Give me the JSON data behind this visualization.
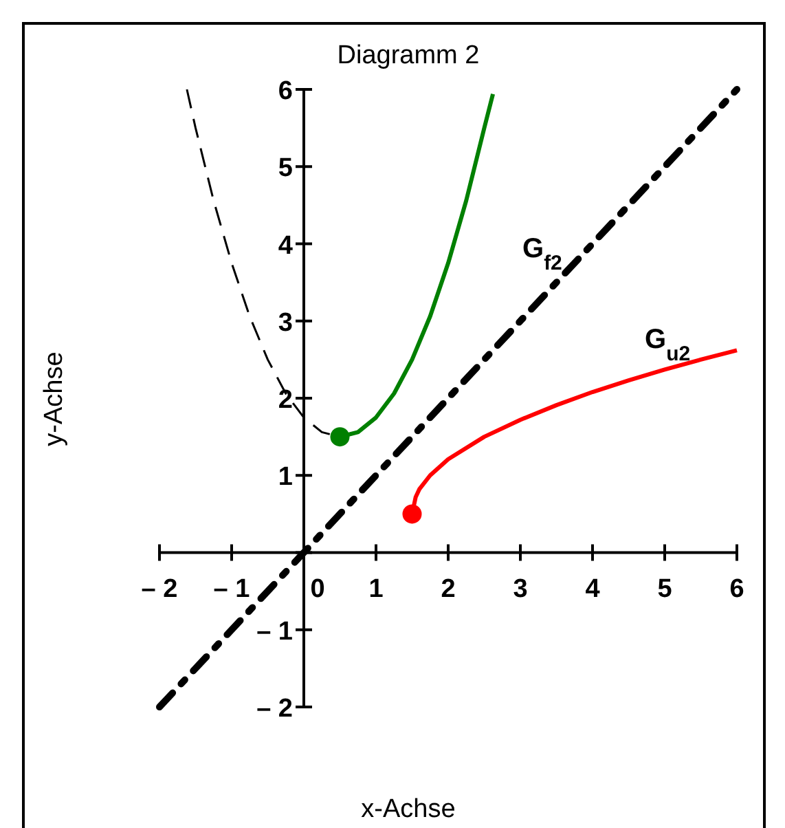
{
  "chart_data": {
    "type": "line",
    "title": "Diagramm 2",
    "xlabel": "x-Achse",
    "ylabel": "y-Achse",
    "xlim": [
      -2,
      6
    ],
    "ylim": [
      -2,
      6
    ],
    "xticks": [
      {
        "value": -2,
        "label": "– 2"
      },
      {
        "value": -1,
        "label": "– 1"
      },
      0,
      1,
      2,
      3,
      4,
      5,
      6
    ],
    "yticks": [
      {
        "value": -2,
        "label": "– 2"
      },
      {
        "value": -1,
        "label": "– 1"
      },
      {
        "value": 0,
        "label": null
      },
      1,
      2,
      3,
      4,
      5,
      6
    ],
    "grid": false,
    "series": [
      {
        "type": "line",
        "color": "#000000",
        "line_style": "dashdot",
        "marker": "none",
        "x": [
          -2,
          6
        ],
        "values": [
          -2,
          6
        ]
      },
      {
        "type": "line",
        "color": "#000000",
        "line_style": "dashed",
        "marker": "none",
        "x": [
          -1.62,
          -1.5,
          -1.25,
          -1,
          -0.75,
          -0.5,
          -0.25,
          0,
          0.25,
          0.5
        ],
        "values": [
          6,
          5.5,
          4.56,
          3.75,
          3.06,
          2.5,
          2.06,
          1.75,
          1.56,
          1.5
        ]
      },
      {
        "type": "line",
        "color": "#008000",
        "line_style": "solid",
        "marker": "none",
        "x": [
          0.5,
          0.75,
          1,
          1.25,
          1.5,
          1.75,
          2,
          2.25,
          2.5,
          2.62
        ],
        "values": [
          1.5,
          1.56,
          1.75,
          2.06,
          2.5,
          3.06,
          3.75,
          4.56,
          5.5,
          5.94
        ]
      },
      {
        "type": "line",
        "color": "#ff0000",
        "line_style": "solid",
        "marker": "none",
        "x": [
          1.5,
          1.55,
          1.6,
          1.75,
          2,
          2.5,
          3,
          3.5,
          4,
          4.5,
          5,
          5.5,
          6
        ],
        "values": [
          0.5,
          0.72,
          0.82,
          1,
          1.21,
          1.5,
          1.72,
          1.91,
          2.08,
          2.23,
          2.37,
          2.5,
          2.62
        ]
      },
      {
        "type": "scatter",
        "color": "#008000",
        "marker": "circle",
        "x": [
          0.5
        ],
        "values": [
          1.5
        ]
      },
      {
        "type": "scatter",
        "color": "#ff0000",
        "marker": "circle",
        "x": [
          1.5
        ],
        "values": [
          0.5
        ]
      }
    ],
    "annotations": [
      "G$_{f2}$",
      "G$_{u2}$"
    ]
  }
}
